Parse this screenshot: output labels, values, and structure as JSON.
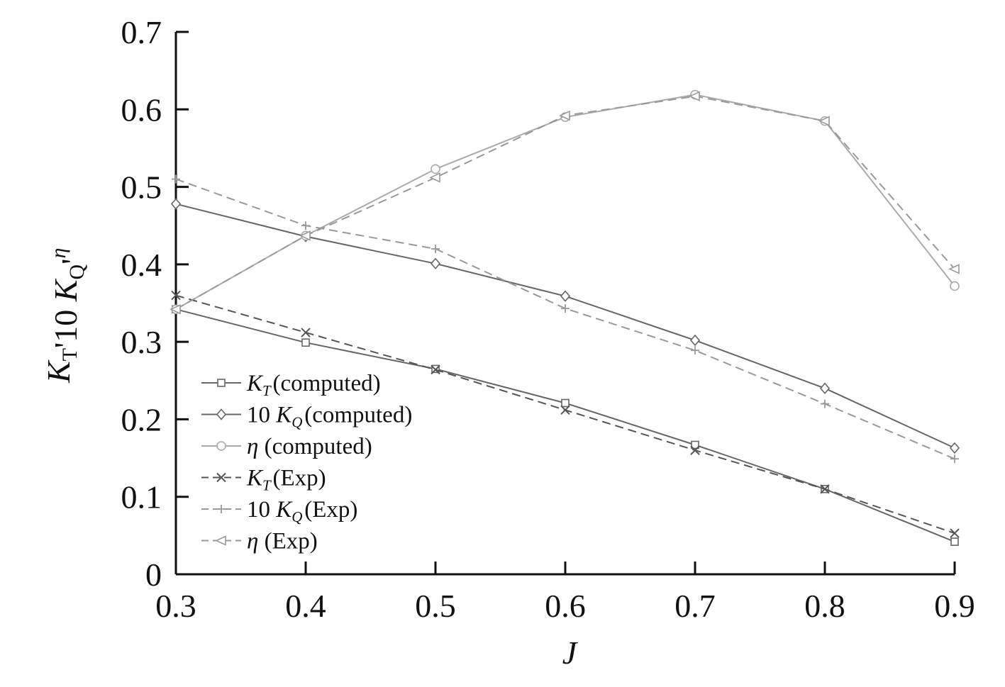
{
  "chart_data": {
    "type": "line",
    "xlabel": "J",
    "ylabel": {
      "parts": [
        {
          "text": "K",
          "italic": true
        },
        {
          "text": "T",
          "sub": true
        },
        {
          "text": "'10 "
        },
        {
          "text": "K",
          "italic": true
        },
        {
          "text": "Q",
          "sub": true
        },
        {
          "text": "'"
        },
        {
          "text": "η",
          "italic": true,
          "sup": true
        }
      ]
    },
    "xlim": [
      0.3,
      0.9
    ],
    "ylim": [
      0,
      0.7
    ],
    "xticks": [
      "0.3",
      "0.4",
      "0.5",
      "0.6",
      "0.7",
      "0.8",
      "0.9"
    ],
    "yticks": [
      "0",
      "0.1",
      "0.2",
      "0.3",
      "0.4",
      "0.5",
      "0.6",
      "0.7"
    ],
    "grid": false,
    "legend_position": "lower-left",
    "x": [
      0.3,
      0.4,
      0.5,
      0.6,
      0.7,
      0.8,
      0.9
    ],
    "series": [
      {
        "name": "KT (computed)",
        "label_parts": [
          {
            "text": "K",
            "italic": true
          },
          {
            "text": "T",
            "sub": true
          },
          {
            "text": "(computed)"
          }
        ],
        "values": [
          0.342,
          0.299,
          0.265,
          0.221,
          0.167,
          0.11,
          0.042
        ],
        "marker": "square",
        "dash": "solid",
        "color": "#666666"
      },
      {
        "name": "10 KQ (computed)",
        "label_parts": [
          {
            "text": "10 "
          },
          {
            "text": "K",
            "italic": true
          },
          {
            "text": "Q",
            "sub": true
          },
          {
            "text": "(computed)"
          }
        ],
        "values": [
          0.478,
          0.436,
          0.401,
          0.359,
          0.302,
          0.24,
          0.163
        ],
        "marker": "diamond",
        "dash": "solid",
        "color": "#666666"
      },
      {
        "name": "η (computed)",
        "label_parts": [
          {
            "text": "η",
            "italic": true
          },
          {
            "text": " (computed)"
          }
        ],
        "values": [
          0.342,
          0.437,
          0.523,
          0.59,
          0.619,
          0.585,
          0.372
        ],
        "marker": "circle",
        "dash": "solid",
        "color": "#aaaaaa"
      },
      {
        "name": "KT (Exp)",
        "label_parts": [
          {
            "text": "K",
            "italic": true
          },
          {
            "text": "T",
            "sub": true
          },
          {
            "text": "(Exp)"
          }
        ],
        "values": [
          0.36,
          0.312,
          0.264,
          0.212,
          0.16,
          0.11,
          0.053
        ],
        "marker": "x",
        "dash": "dashed",
        "color": "#555555"
      },
      {
        "name": "10 KQ (Exp)",
        "label_parts": [
          {
            "text": "10 "
          },
          {
            "text": "K",
            "italic": true
          },
          {
            "text": "Q",
            "sub": true
          },
          {
            "text": "(Exp)"
          }
        ],
        "values": [
          0.51,
          0.45,
          0.42,
          0.343,
          0.289,
          0.22,
          0.149
        ],
        "marker": "plus",
        "dash": "dashed",
        "color": "#999999"
      },
      {
        "name": "η (Exp)",
        "label_parts": [
          {
            "text": "η",
            "italic": true
          },
          {
            "text": " (Exp)"
          }
        ],
        "values": [
          0.342,
          0.437,
          0.512,
          0.592,
          0.617,
          0.585,
          0.394
        ],
        "marker": "triangle-left",
        "dash": "dashed",
        "color": "#999999"
      }
    ]
  }
}
